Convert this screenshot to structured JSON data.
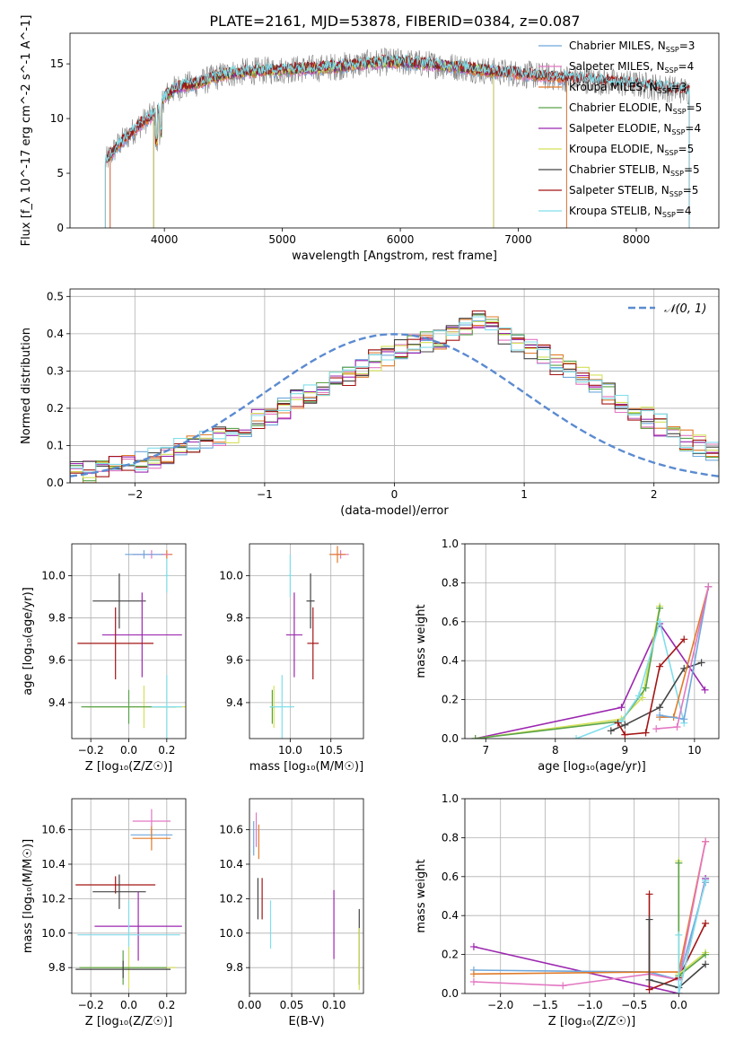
{
  "figure_title": "PLATE=2161, MJD=53878, FIBERID=0384, z=0.087",
  "colors": {
    "chabrier_miles": "#6fa8dc",
    "salpeter_miles": "#e377c2",
    "kroupa_miles": "#e07b2a",
    "chabrier_elodie": "#5aa34a",
    "salpeter_elodie": "#9c27b0",
    "kroupa_elodie": "#d4e157",
    "chabrier_stelib": "#444444",
    "salpeter_stelib": "#a31515",
    "kroupa_stelib": "#80deea",
    "gaussian": "#5b8bd0",
    "data": "#808080"
  },
  "chart_data": [
    {
      "id": "spectrum",
      "type": "line",
      "title": "PLATE=2161, MJD=53878, FIBERID=0384, z=0.087",
      "xlabel": "wavelength [Angstrom, rest frame]",
      "ylabel": "Flux [f_λ 10^-17 erg cm^-2 s^-1 A^-1]",
      "xlim": [
        3200,
        8700
      ],
      "ylim": [
        0,
        17.8
      ],
      "xticks": [
        4000,
        5000,
        6000,
        7000,
        8000
      ],
      "yticks": [
        0,
        5,
        10,
        15
      ],
      "grid": false,
      "legend_position": "right",
      "legend": [
        {
          "label": "Chabrier MILES, N",
          "sub": "SSP",
          "tail": "=3",
          "color_key": "chabrier_miles"
        },
        {
          "label": "Salpeter MILES, N",
          "sub": "SSP",
          "tail": "=4",
          "color_key": "salpeter_miles"
        },
        {
          "label": "Kroupa MILES, N",
          "sub": "SSP",
          "tail": "=3",
          "color_key": "kroupa_miles"
        },
        {
          "label": "Chabrier ELODIE, N",
          "sub": "SSP",
          "tail": "=5",
          "color_key": "chabrier_elodie"
        },
        {
          "label": "Salpeter ELODIE, N",
          "sub": "SSP",
          "tail": "=4",
          "color_key": "salpeter_elodie"
        },
        {
          "label": "Kroupa ELODIE, N",
          "sub": "SSP",
          "tail": "=5",
          "color_key": "kroupa_elodie"
        },
        {
          "label": "Chabrier STELIB, N",
          "sub": "SSP",
          "tail": "=5",
          "color_key": "chabrier_stelib"
        },
        {
          "label": "Salpeter STELIB, N",
          "sub": "SSP",
          "tail": "=5",
          "color_key": "salpeter_stelib"
        },
        {
          "label": "Kroupa STELIB, N",
          "sub": "SSP",
          "tail": "=4",
          "color_key": "kroupa_stelib"
        }
      ],
      "continuum": {
        "x": [
          3500,
          3600,
          3700,
          3800,
          3900,
          3950,
          4000,
          4100,
          4300,
          4500,
          4700,
          4900,
          5100,
          5300,
          5500,
          5700,
          5900,
          6100,
          6300,
          6500,
          6700,
          6900,
          7100,
          7300,
          7500,
          7700,
          7900,
          8100,
          8300,
          8450
        ],
        "y": [
          6.0,
          7.5,
          8.5,
          9.5,
          10.3,
          10.8,
          12.0,
          12.8,
          13.3,
          14.0,
          14.3,
          14.4,
          14.5,
          14.6,
          14.8,
          15.0,
          15.2,
          15.1,
          14.9,
          14.7,
          14.4,
          14.2,
          14.0,
          13.8,
          13.6,
          13.4,
          13.2,
          13.0,
          12.7,
          12.5
        ]
      }
    },
    {
      "id": "residuals",
      "type": "bar",
      "xlabel": "(data-model)/error",
      "ylabel": "Normed distribution",
      "xlim": [
        -2.5,
        2.5
      ],
      "ylim": [
        0,
        0.52
      ],
      "xticks": [
        -2,
        -1,
        0,
        1,
        2
      ],
      "yticks": [
        0.0,
        0.1,
        0.2,
        0.3,
        0.4,
        0.5
      ],
      "grid": true,
      "legend": [
        {
          "label": "𝒩(0, 1)",
          "color_key": "gaussian"
        }
      ],
      "legend_position": "top-right",
      "bin_width": 0.1,
      "bin_start": -2.5,
      "base_values": [
        0.03,
        0.03,
        0.035,
        0.045,
        0.05,
        0.055,
        0.065,
        0.075,
        0.09,
        0.1,
        0.11,
        0.12,
        0.135,
        0.15,
        0.17,
        0.18,
        0.2,
        0.22,
        0.235,
        0.25,
        0.27,
        0.29,
        0.31,
        0.33,
        0.34,
        0.355,
        0.37,
        0.38,
        0.385,
        0.395,
        0.42,
        0.44,
        0.43,
        0.4,
        0.38,
        0.36,
        0.34,
        0.32,
        0.3,
        0.28,
        0.26,
        0.24,
        0.215,
        0.195,
        0.175,
        0.155,
        0.135,
        0.115,
        0.1,
        0.085,
        0.07,
        0.06,
        0.05,
        0.04,
        0.035,
        0.03,
        0.025,
        0.02,
        0.02,
        0.02
      ]
    },
    {
      "id": "age_vs_Z",
      "type": "scatter",
      "xlabel": "Z [log₁₀(Z/Z☉)]",
      "ylabel": "age  [log₁₀(age/yr)]",
      "xlim": [
        -0.3,
        0.3
      ],
      "ylim": [
        9.23,
        10.15
      ],
      "xticks": [
        -0.2,
        0.0,
        0.2
      ],
      "yticks": [
        9.4,
        9.6,
        9.8,
        10.0
      ],
      "grid": true,
      "points": [
        {
          "c": "kroupa_miles",
          "x": 0.2,
          "xerr": 0.03,
          "y": 10.1,
          "yerr": 0.02
        },
        {
          "c": "salpeter_miles",
          "x": 0.12,
          "xerr": 0.1,
          "y": 10.1,
          "yerr": 0.02
        },
        {
          "c": "chabrier_miles",
          "x": 0.08,
          "xerr": 0.1,
          "y": 10.1,
          "yerr": 0.02
        },
        {
          "c": "kroupa_stelib",
          "x": 0.2,
          "xerr": 0.01,
          "y": 10.0,
          "yerr": 0.08
        },
        {
          "c": "chabrier_stelib",
          "x": -0.05,
          "xerr": 0.14,
          "y": 9.88,
          "yerr": 0.13
        },
        {
          "c": "salpeter_elodie",
          "x": 0.07,
          "xerr": 0.21,
          "y": 9.72,
          "yerr": 0.2
        },
        {
          "c": "salpeter_stelib",
          "x": -0.07,
          "xerr": 0.2,
          "y": 9.68,
          "yerr": 0.17
        },
        {
          "c": "kroupa_elodie",
          "x": 0.08,
          "xerr": 0.3,
          "y": 9.38,
          "yerr": 0.1
        },
        {
          "c": "chabrier_elodie",
          "x": 0.0,
          "xerr": 0.25,
          "y": 9.38,
          "yerr": 0.08
        },
        {
          "c": "kroupa_stelib",
          "x": 0.2,
          "xerr": 0.08,
          "y": 9.38,
          "yerr": 0.15
        }
      ]
    },
    {
      "id": "age_vs_mass",
      "type": "scatter",
      "xlabel": "mass [log₁₀(M/M☉)]",
      "ylabel": "",
      "xlim": [
        9.5,
        10.9
      ],
      "ylim": [
        9.23,
        10.15
      ],
      "xticks": [
        10.0,
        10.5
      ],
      "yticks": [
        9.4,
        9.6,
        9.8,
        10.0
      ],
      "grid": true,
      "points": [
        {
          "c": "salpeter_miles",
          "x": 10.62,
          "xerr": 0.1,
          "y": 10.1,
          "yerr": 0.02
        },
        {
          "c": "kroupa_miles",
          "x": 10.58,
          "xerr": 0.1,
          "y": 10.1,
          "yerr": 0.04
        },
        {
          "c": "chabrier_stelib",
          "x": 10.25,
          "xerr": 0.05,
          "y": 9.88,
          "yerr": 0.13
        },
        {
          "c": "salpeter_elodie",
          "x": 10.05,
          "xerr": 0.1,
          "y": 9.72,
          "yerr": 0.2
        },
        {
          "c": "salpeter_stelib",
          "x": 10.28,
          "xerr": 0.07,
          "y": 9.68,
          "yerr": 0.17
        },
        {
          "c": "kroupa_stelib",
          "x": 10.0,
          "xerr": 0.02,
          "y": 10.0,
          "yerr": 0.1
        },
        {
          "c": "kroupa_elodie",
          "x": 9.8,
          "xerr": 0.03,
          "y": 9.38,
          "yerr": 0.1
        },
        {
          "c": "chabrier_elodie",
          "x": 9.78,
          "xerr": 0.03,
          "y": 9.38,
          "yerr": 0.08
        },
        {
          "c": "kroupa_stelib",
          "x": 9.9,
          "xerr": 0.15,
          "y": 9.38,
          "yerr": 0.15
        }
      ]
    },
    {
      "id": "weight_vs_age",
      "type": "line",
      "xlabel": "age  [log₁₀(age/yr)]",
      "ylabel": "mass weight",
      "xlim": [
        6.7,
        10.35
      ],
      "ylim": [
        0,
        1.0
      ],
      "xticks": [
        7,
        8,
        9,
        10
      ],
      "yticks": [
        0.0,
        0.2,
        0.4,
        0.6,
        0.8,
        1.0
      ],
      "grid": true,
      "series": [
        {
          "c": "salpeter_elodie",
          "x": [
            6.85,
            8.95,
            9.5,
            10.15
          ],
          "y": [
            0.0,
            0.16,
            0.59,
            0.25
          ]
        },
        {
          "c": "kroupa_elodie",
          "x": [
            6.85,
            8.95,
            9.25,
            9.5
          ],
          "y": [
            0.0,
            0.1,
            0.21,
            0.68
          ]
        },
        {
          "c": "chabrier_elodie",
          "x": [
            6.85,
            8.95,
            9.3,
            9.5
          ],
          "y": [
            0.0,
            0.09,
            0.26,
            0.67
          ]
        },
        {
          "c": "kroupa_stelib",
          "x": [
            8.3,
            8.95,
            9.2,
            9.5,
            9.85
          ],
          "y": [
            0.0,
            0.09,
            0.22,
            0.6,
            0.08
          ]
        },
        {
          "c": "chabrier_stelib",
          "x": [
            8.8,
            9.0,
            9.5,
            9.85,
            10.1
          ],
          "y": [
            0.04,
            0.07,
            0.16,
            0.36,
            0.39
          ]
        },
        {
          "c": "salpeter_stelib",
          "x": [
            8.9,
            9.0,
            9.3,
            9.5,
            9.85
          ],
          "y": [
            0.08,
            0.02,
            0.03,
            0.37,
            0.51
          ]
        },
        {
          "c": "kroupa_miles",
          "x": [
            9.5,
            9.7,
            10.2
          ],
          "y": [
            0.11,
            0.11,
            0.78
          ]
        },
        {
          "c": "chabrier_miles",
          "x": [
            9.5,
            9.85,
            10.2
          ],
          "y": [
            0.12,
            0.1,
            0.78
          ]
        },
        {
          "c": "salpeter_miles",
          "x": [
            9.45,
            9.75,
            10.2
          ],
          "y": [
            0.05,
            0.06,
            0.78
          ]
        }
      ]
    },
    {
      "id": "mass_vs_Z",
      "type": "scatter",
      "xlabel": "Z [log₁₀(Z/Z☉)]",
      "ylabel": "mass [log₁₀(M/M☉)]",
      "xlim": [
        -0.3,
        0.3
      ],
      "ylim": [
        9.65,
        10.78
      ],
      "xticks": [
        -0.2,
        0.0,
        0.2
      ],
      "yticks": [
        9.8,
        10.0,
        10.2,
        10.4,
        10.6
      ],
      "grid": true,
      "points": [
        {
          "c": "salpeter_miles",
          "x": 0.12,
          "xerr": 0.1,
          "y": 10.65,
          "yerr": 0.07
        },
        {
          "c": "chabrier_miles",
          "x": 0.12,
          "xerr": 0.11,
          "y": 10.57,
          "yerr": 0.03
        },
        {
          "c": "kroupa_miles",
          "x": 0.12,
          "xerr": 0.1,
          "y": 10.55,
          "yerr": 0.07
        },
        {
          "c": "salpeter_stelib",
          "x": -0.07,
          "xerr": 0.21,
          "y": 10.28,
          "yerr": 0.05
        },
        {
          "c": "chabrier_stelib",
          "x": -0.05,
          "xerr": 0.14,
          "y": 10.24,
          "yerr": 0.1
        },
        {
          "c": "salpeter_elodie",
          "x": 0.05,
          "xerr": 0.23,
          "y": 10.04,
          "yerr": 0.2
        },
        {
          "c": "kroupa_stelib",
          "x": 0.0,
          "xerr": 0.27,
          "y": 9.99,
          "yerr": 0.2
        },
        {
          "c": "kroupa_elodie",
          "x": 0.0,
          "xerr": 0.25,
          "y": 9.8,
          "yerr": 0.12
        },
        {
          "c": "chabrier_elodie",
          "x": -0.03,
          "xerr": 0.23,
          "y": 9.8,
          "yerr": 0.1
        },
        {
          "c": "chabrier_stelib",
          "x": -0.03,
          "xerr": 0.25,
          "y": 9.79,
          "yerr": 0.05
        }
      ]
    },
    {
      "id": "mass_vs_EBV",
      "type": "scatter",
      "xlabel": "E(B-V)",
      "ylabel": "",
      "xlim": [
        0.0,
        0.135
      ],
      "ylim": [
        9.65,
        10.78
      ],
      "xticks": [
        0.0,
        0.05,
        0.1
      ],
      "yticks": [
        9.8,
        10.0,
        10.2,
        10.4,
        10.6
      ],
      "grid": true,
      "points": [
        {
          "c": "chabrier_miles",
          "x": 0.005,
          "xerr": 0.0,
          "y": 10.55,
          "yerr": 0.1
        },
        {
          "c": "salpeter_miles",
          "x": 0.008,
          "xerr": 0.0,
          "y": 10.6,
          "yerr": 0.1
        },
        {
          "c": "kroupa_miles",
          "x": 0.011,
          "xerr": 0.0,
          "y": 10.53,
          "yerr": 0.1
        },
        {
          "c": "chabrier_stelib",
          "x": 0.01,
          "xerr": 0.0,
          "y": 10.2,
          "yerr": 0.12
        },
        {
          "c": "salpeter_stelib",
          "x": 0.015,
          "xerr": 0.0,
          "y": 10.2,
          "yerr": 0.12
        },
        {
          "c": "kroupa_stelib",
          "x": 0.025,
          "xerr": 0.0,
          "y": 10.05,
          "yerr": 0.14
        },
        {
          "c": "salpeter_elodie",
          "x": 0.1,
          "xerr": 0.0,
          "y": 10.05,
          "yerr": 0.2
        },
        {
          "c": "chabrier_stelib",
          "x": 0.13,
          "xerr": 0.0,
          "y": 9.92,
          "yerr": 0.22
        },
        {
          "c": "kroupa_elodie",
          "x": 0.13,
          "xerr": 0.0,
          "y": 9.85,
          "yerr": 0.18
        }
      ]
    },
    {
      "id": "weight_vs_Z",
      "type": "line",
      "xlabel": "Z [log₁₀(Z/Z☉)]",
      "ylabel": "mass weight",
      "xlim": [
        -2.4,
        0.45
      ],
      "ylim": [
        0,
        1.0
      ],
      "xticks": [
        -2.0,
        -1.5,
        -1.0,
        -0.5,
        0.0
      ],
      "yticks": [
        0.0,
        0.2,
        0.4,
        0.6,
        0.8,
        1.0
      ],
      "grid": true,
      "series": [
        {
          "c": "salpeter_elodie",
          "x": [
            -2.3,
            0.0,
            0.3
          ],
          "y": [
            0.24,
            0.0,
            0.59
          ]
        },
        {
          "c": "chabrier_miles",
          "x": [
            -2.3,
            -0.33,
            0.0,
            0.3
          ],
          "y": [
            0.12,
            0.11,
            0.07,
            0.57
          ]
        },
        {
          "c": "kroupa_miles",
          "x": [
            -2.3,
            -0.33,
            0.0,
            0.3
          ],
          "y": [
            0.1,
            0.11,
            0.11,
            0.78
          ]
        },
        {
          "c": "salpeter_miles",
          "x": [
            -2.3,
            -1.3,
            -0.33,
            0.0,
            0.3
          ],
          "y": [
            0.06,
            0.04,
            0.1,
            0.07,
            0.78
          ]
        },
        {
          "c": "salpeter_stelib",
          "x": [
            -0.33,
            -0.33,
            0.0,
            0.3
          ],
          "y": [
            0.51,
            0.02,
            0.08,
            0.36
          ]
        },
        {
          "c": "chabrier_stelib",
          "x": [
            -0.33,
            -0.33,
            0.0,
            0.3
          ],
          "y": [
            0.38,
            0.07,
            0.03,
            0.15
          ]
        },
        {
          "c": "kroupa_elodie",
          "x": [
            0.0,
            0.0,
            0.3
          ],
          "y": [
            0.68,
            0.1,
            0.21
          ]
        },
        {
          "c": "chabrier_elodie",
          "x": [
            0.0,
            0.0,
            0.3
          ],
          "y": [
            0.67,
            0.09,
            0.2
          ]
        },
        {
          "c": "kroupa_stelib",
          "x": [
            0.0,
            0.0,
            0.3
          ],
          "y": [
            0.3,
            0.0,
            0.58
          ]
        }
      ]
    }
  ]
}
